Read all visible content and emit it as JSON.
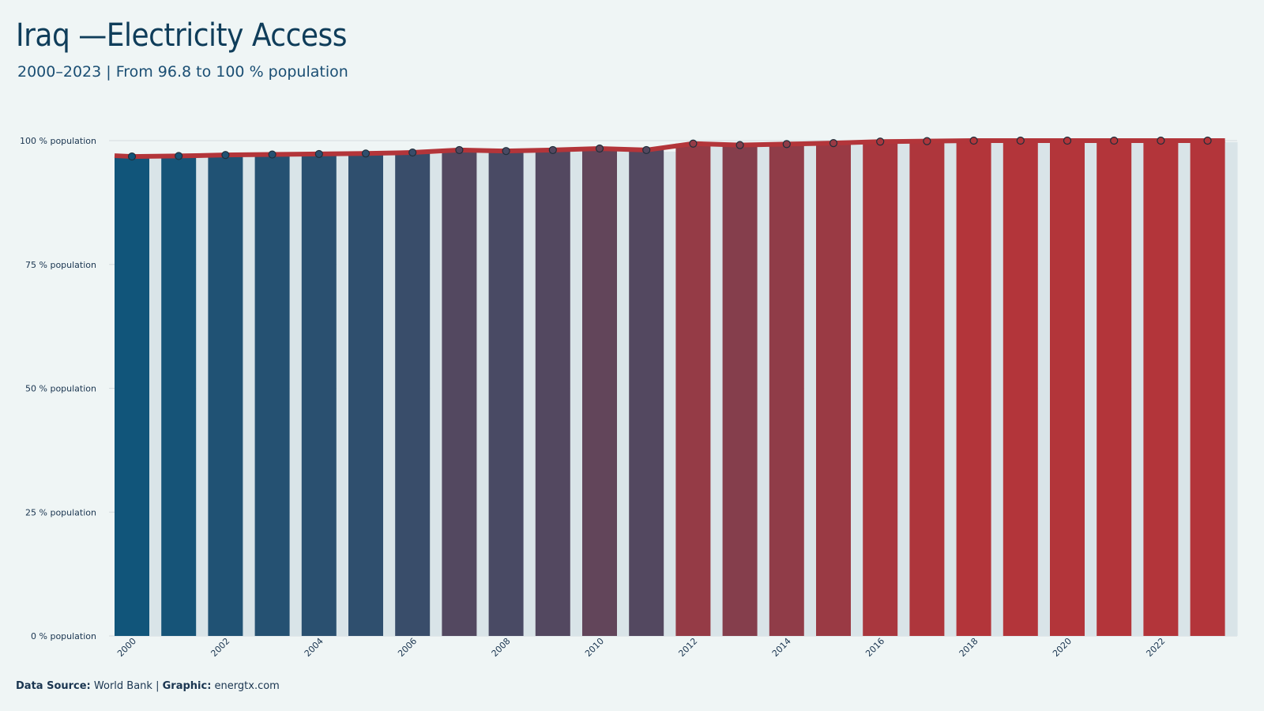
{
  "title": "Iraq —Electricity Access",
  "subtitle": "2000–2023 | From 96.8 to 100 % population",
  "footer": {
    "source_label": "Data Source:",
    "source_value": "World Bank",
    "separator": "|",
    "graphic_label": "Graphic:",
    "graphic_value": "energtx.com"
  },
  "colors": {
    "start": "#11557a",
    "end": "#b3353a",
    "shadow_bar": "#d9e4e8",
    "line": "#b3353a",
    "grid": "#d4dcdf",
    "background": "#eff5f5"
  },
  "chart_data": {
    "type": "bar",
    "categories": [
      "2000",
      "2001",
      "2002",
      "2003",
      "2004",
      "2005",
      "2006",
      "2007",
      "2008",
      "2009",
      "2010",
      "2011",
      "2012",
      "2013",
      "2014",
      "2015",
      "2016",
      "2017",
      "2018",
      "2019",
      "2020",
      "2021",
      "2022",
      "2023"
    ],
    "values": [
      96.8,
      96.9,
      97.1,
      97.2,
      97.3,
      97.4,
      97.6,
      98.1,
      97.9,
      98.1,
      98.4,
      98.1,
      99.4,
      99.1,
      99.3,
      99.5,
      99.8,
      99.9,
      100,
      100,
      100,
      100,
      100,
      100
    ],
    "x_tick_labels": [
      "2000",
      "2002",
      "2004",
      "2006",
      "2008",
      "2010",
      "2012",
      "2014",
      "2016",
      "2018",
      "2020",
      "2022"
    ],
    "y_ticks": [
      0,
      25,
      50,
      75,
      100
    ],
    "y_tick_labels": [
      "0 % population",
      "25 % population",
      "50 % population",
      "75 % population",
      "100 % population"
    ],
    "ylim": [
      0,
      100
    ],
    "grid": true,
    "legend": "none"
  }
}
